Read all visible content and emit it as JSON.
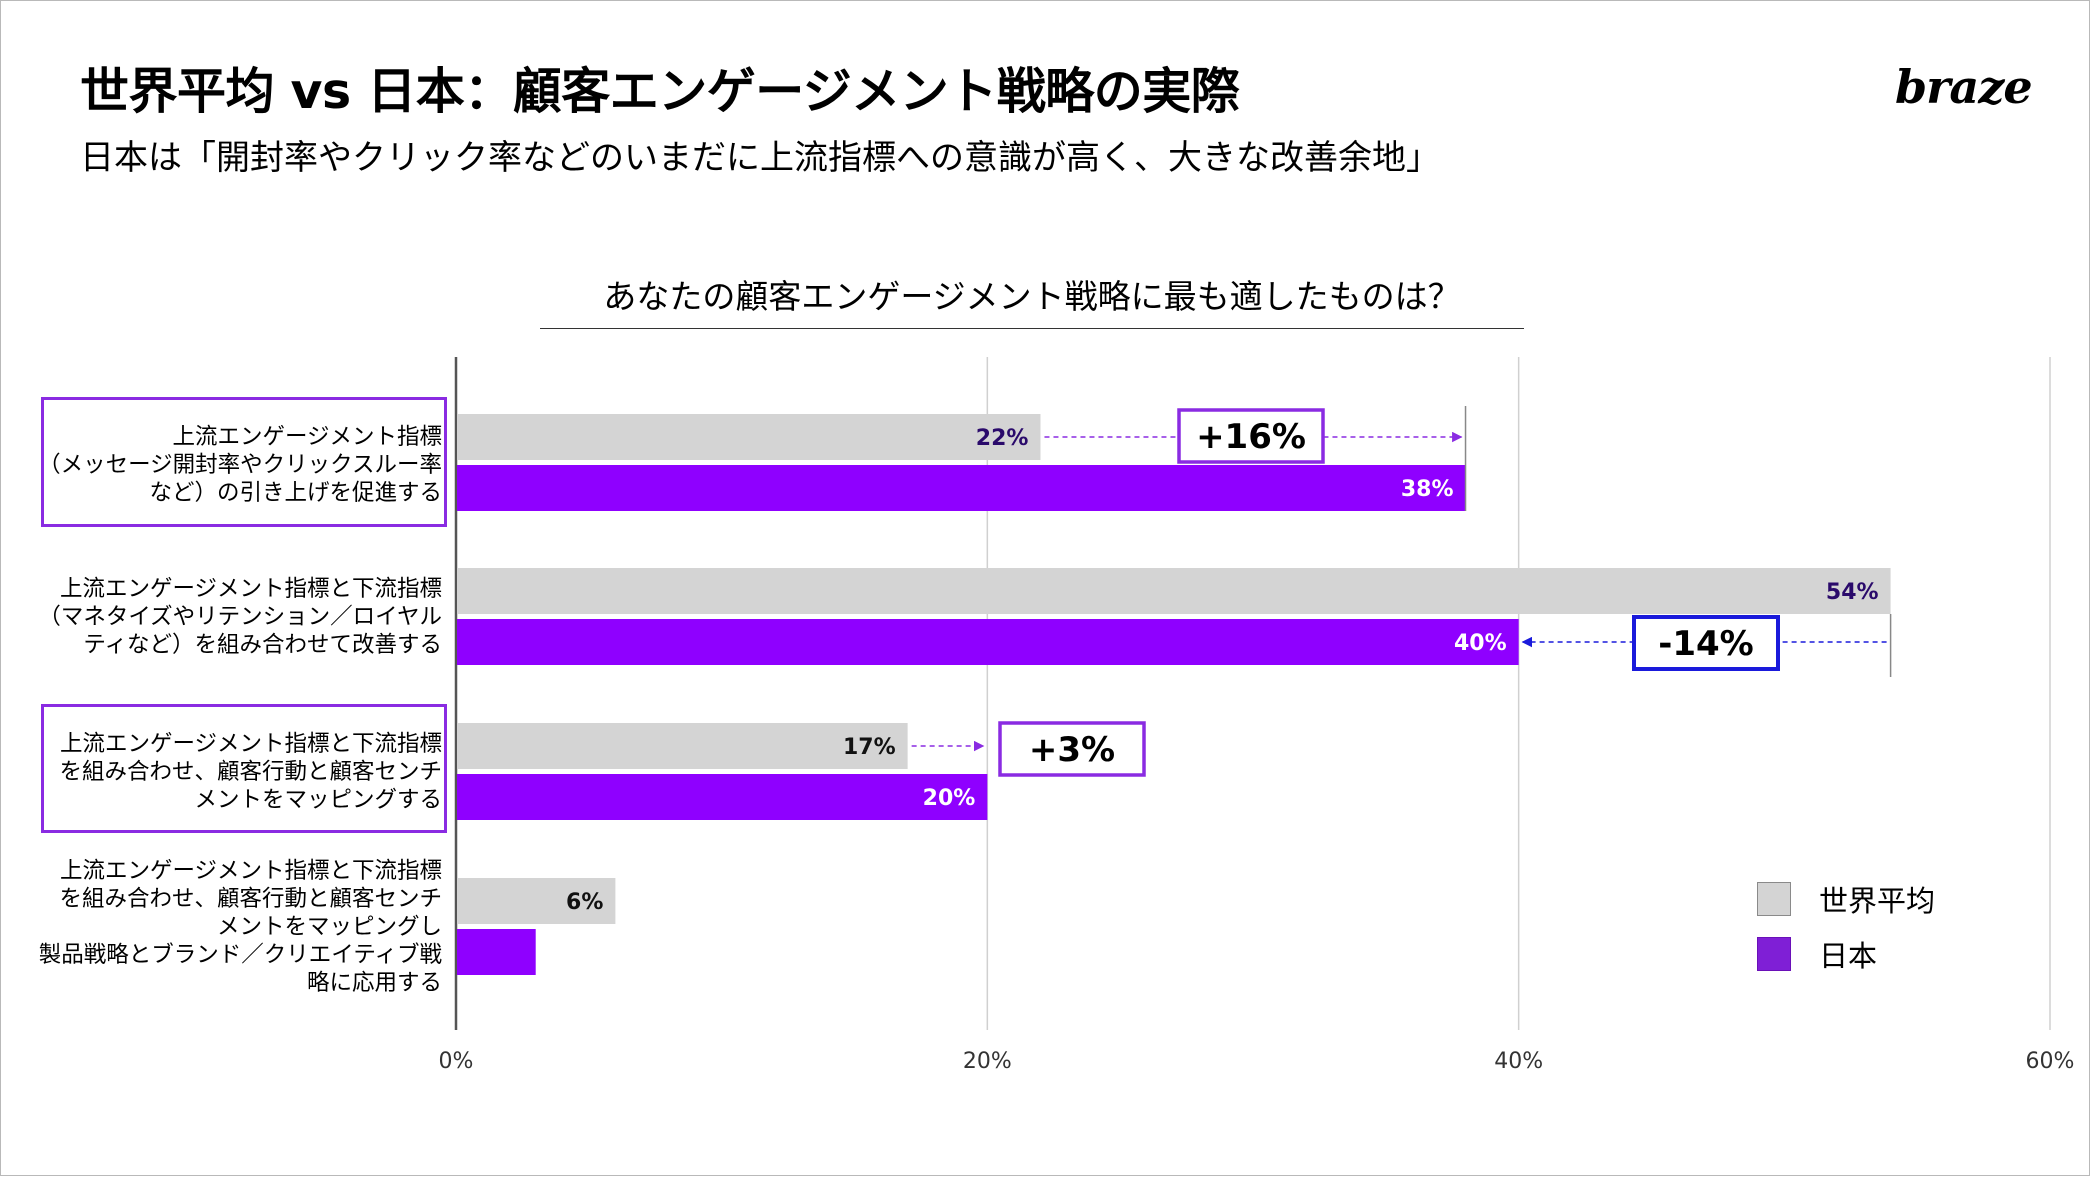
{
  "header": {
    "title": "世界平均 vs 日本：顧客エンゲージメント戦略の実際",
    "subtitle": "日本は「開封率やクリック率などのいまだに上流指標への意識が高く、大きな改善余地」",
    "logo": "braze"
  },
  "colors": {
    "world": "#d4d4d4",
    "japan": "#8f00ff",
    "diff_purple": "#8a2be2",
    "diff_blue": "#1a1adb",
    "grid": "#d0d0d0"
  },
  "chart_data": {
    "type": "bar",
    "orientation": "horizontal",
    "title": "あなたの顧客エンゲージメント戦略に最も適したものは？",
    "categories": [
      "上流エンゲージメント指標\n（メッセージ開封率やクリックスルー率\nなど）の引き上げを促進する",
      "上流エンゲージメント指標と下流指標\n（マネタイズやリテンション／ロイヤル\nティなど）を組み合わせて改善する",
      "上流エンゲージメント指標と下流指標\nを組み合わせ、顧客行動と顧客センチ\nメントをマッピングする",
      "上流エンゲージメント指標と下流指標\nを組み合わせ、顧客行動と顧客センチ\nメントをマッピングし\n製品戦略とブランド／クリエイティブ戦\n略に応用する"
    ],
    "series": [
      {
        "name": "世界平均",
        "values": [
          22,
          54,
          17,
          6
        ],
        "labels": [
          "22%",
          "54%",
          "17%",
          "6%"
        ]
      },
      {
        "name": "日本",
        "values": [
          38,
          40,
          20,
          3
        ],
        "labels": [
          "38%",
          "40%",
          "20%",
          ""
        ]
      }
    ],
    "x_ticks": [
      "0%",
      "20%",
      "40%",
      "60%"
    ],
    "xlim": [
      0,
      60
    ],
    "grid": true,
    "legend_position": "bottom-right",
    "highlighted_categories": [
      0,
      2
    ],
    "annotations": [
      {
        "category": 0,
        "text": "+16%",
        "from": 22,
        "to": 38,
        "color": "purple"
      },
      {
        "category": 1,
        "text": "-14%",
        "from": 54,
        "to": 40,
        "color": "blue"
      },
      {
        "category": 2,
        "text": "+3%",
        "from": 17,
        "to": 20,
        "color": "purple"
      }
    ]
  }
}
